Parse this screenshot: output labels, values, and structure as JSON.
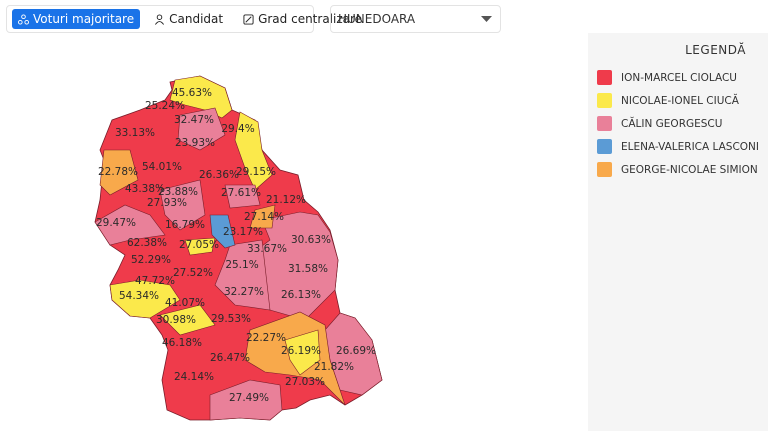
{
  "toolbar": {
    "buttons": [
      "Voturi majoritare",
      "Candidat",
      "Grad centralizare"
    ]
  },
  "county_select": "HUNEDOARA",
  "legend": {
    "title": "LEGENDĂ",
    "items": [
      {
        "name": "ION-MARCEL CIOLACU",
        "color": "#ef3b4b"
      },
      {
        "name": "NICOLAE-IONEL CIUCĂ",
        "color": "#fbe94b"
      },
      {
        "name": "CĂLIN GEORGESCU",
        "color": "#e98099"
      },
      {
        "name": "ELENA-VALERICA LASCONI",
        "color": "#5b9bd5"
      },
      {
        "name": "GEORGE-NICOLAE SIMION",
        "color": "#f8a94b"
      }
    ]
  },
  "map": {
    "labels": [
      "45.63%",
      "25.24%",
      "32.47%",
      "29.4%",
      "33.13%",
      "23.93%",
      "26.36%",
      "54.01%",
      "29.15%",
      "22.78%",
      "43.38%",
      "23.88%",
      "27.61%",
      "21.12%",
      "27.93%",
      "27.14%",
      "29.47%",
      "16.79%",
      "23.17%",
      "30.63%",
      "62.38%",
      "27.05%",
      "33.67%",
      "52.29%",
      "25.1%",
      "31.58%",
      "47.72%",
      "27.52%",
      "54.34%",
      "32.27%",
      "26.13%",
      "41.07%",
      "30.98%",
      "29.53%",
      "22.27%",
      "46.18%",
      "26.19%",
      "26.69%",
      "26.47%",
      "21.82%",
      "24.14%",
      "27.03%",
      "27.49%"
    ]
  }
}
